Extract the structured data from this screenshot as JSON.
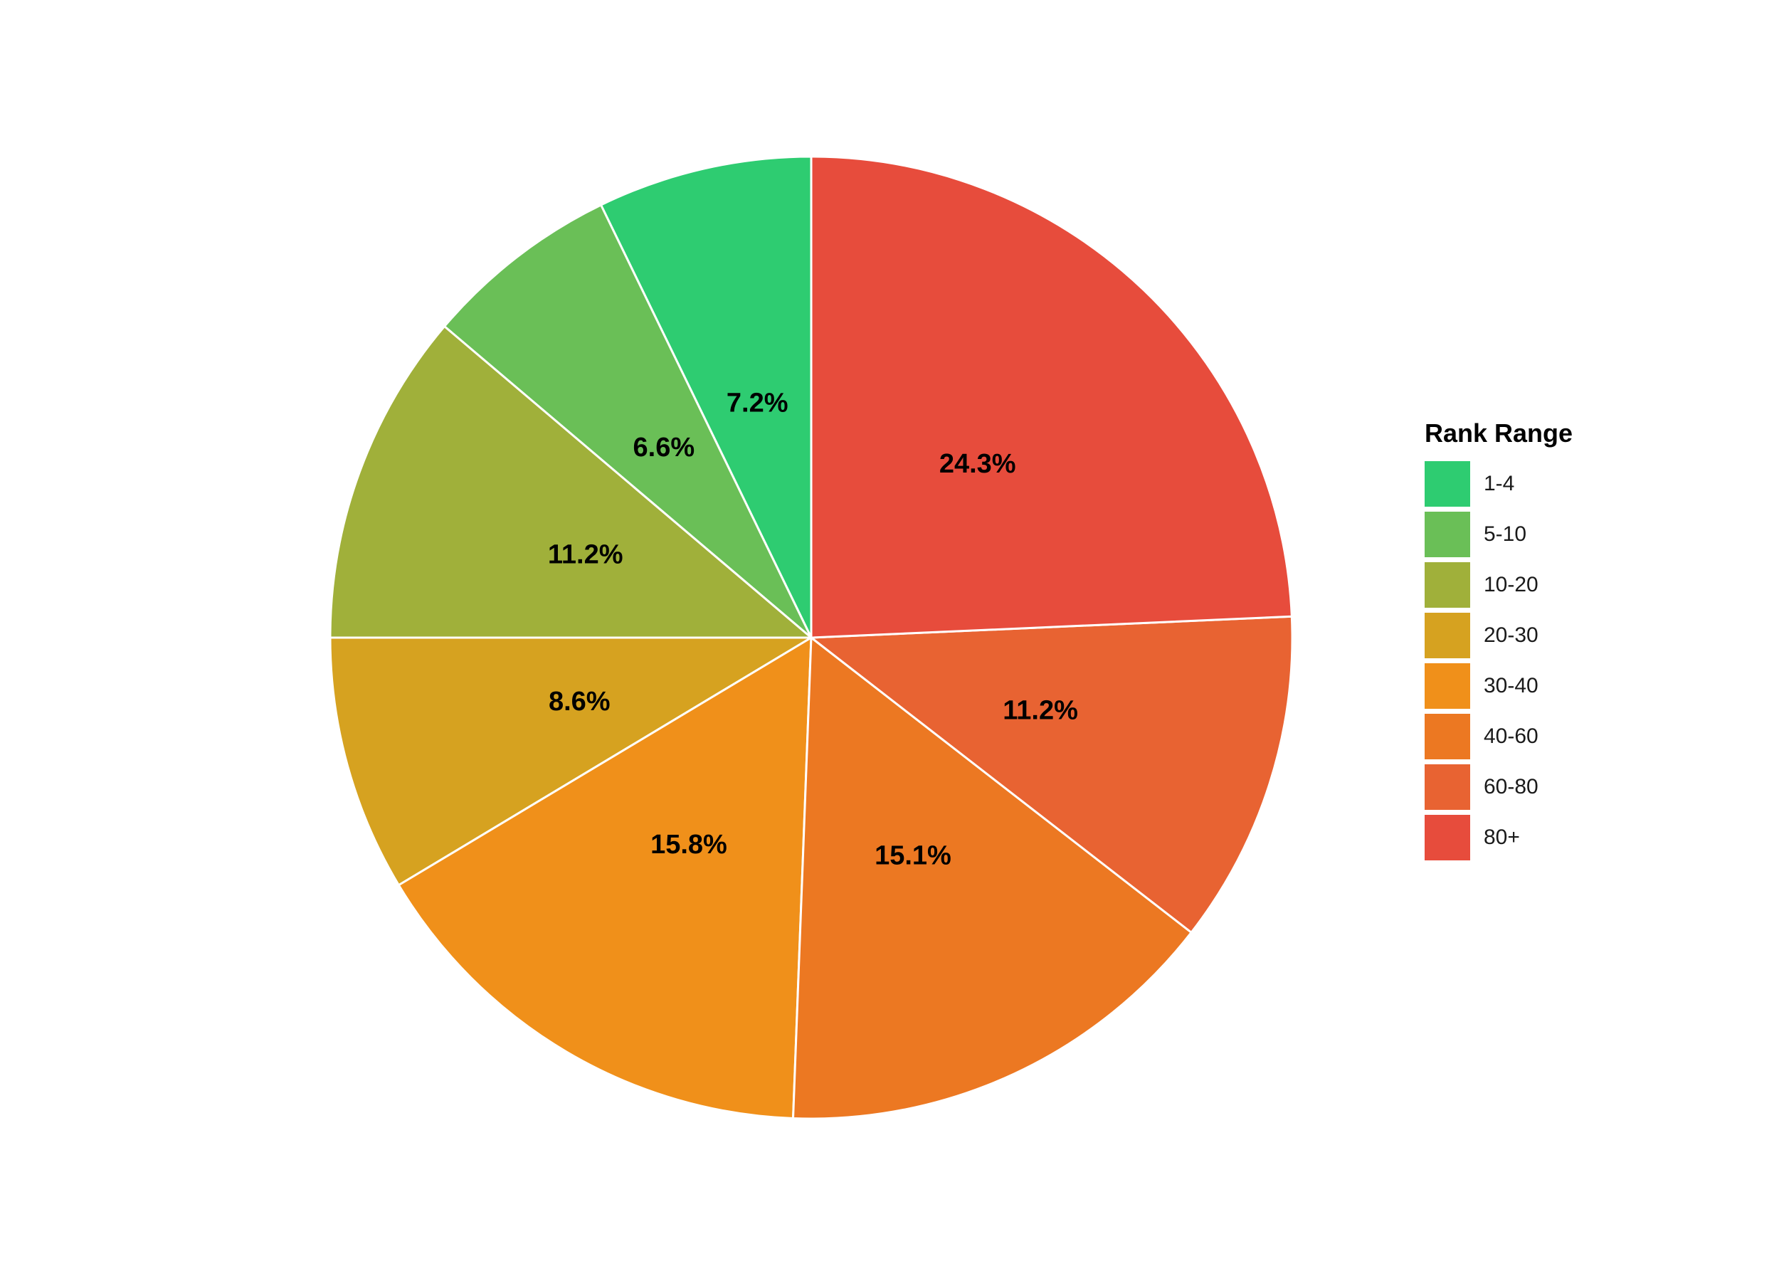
{
  "chart_data": {
    "type": "pie",
    "title": "",
    "legend_title": "Rank Range",
    "legend_position": "right",
    "categories": [
      "1-4",
      "5-10",
      "10-20",
      "20-30",
      "30-40",
      "40-60",
      "60-80",
      "80+"
    ],
    "values": [
      7.2,
      6.6,
      11.2,
      8.6,
      15.8,
      15.1,
      11.2,
      24.3
    ],
    "labels": [
      "7.2%",
      "6.6%",
      "11.2%",
      "8.6%",
      "15.8%",
      "15.1%",
      "11.2%",
      "24.3%"
    ],
    "colors": [
      "#2ecc71",
      "#6abf57",
      "#a0b03a",
      "#d6a220",
      "#f0901a",
      "#ec7822",
      "#e86332",
      "#e74c3c"
    ],
    "start_angle": "12 o'clock",
    "direction": "counter-clockwise"
  }
}
